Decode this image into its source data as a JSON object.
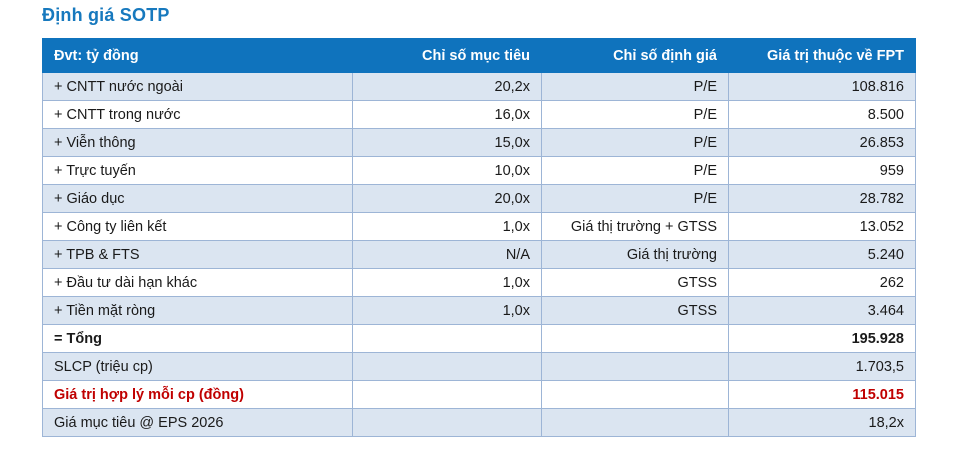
{
  "page_title": "Định giá SOTP",
  "colors": {
    "title_blue": "#1779BE",
    "header_bg": "#0F73BD",
    "header_text": "#FFFFFF",
    "row_shaded_bg": "#DBE5F1",
    "row_plain_bg": "#FFFFFF",
    "cell_border": "#9DB5D6",
    "body_text": "#1A1A1A",
    "highlight_red": "#C00000"
  },
  "table": {
    "headers": [
      "Đvt: tỷ đồng",
      "Chỉ số mục tiêu",
      "Chỉ số định giá",
      "Giá trị thuộc về FPT"
    ],
    "rows": [
      {
        "label": "+ CNTT nước ngoài",
        "target": "20,2x",
        "method": "P/E",
        "value": "108.816",
        "shaded": true,
        "bold": false,
        "red": false
      },
      {
        "label": "+ CNTT trong nước",
        "target": "16,0x",
        "method": "P/E",
        "value": "8.500",
        "shaded": false,
        "bold": false,
        "red": false
      },
      {
        "label": "+ Viễn thông",
        "target": "15,0x",
        "method": "P/E",
        "value": "26.853",
        "shaded": true,
        "bold": false,
        "red": false
      },
      {
        "label": "+ Trực tuyến",
        "target": "10,0x",
        "method": "P/E",
        "value": "959",
        "shaded": false,
        "bold": false,
        "red": false
      },
      {
        "label": "+ Giáo dục",
        "target": "20,0x",
        "method": "P/E",
        "value": "28.782",
        "shaded": true,
        "bold": false,
        "red": false
      },
      {
        "label": "+ Công ty liên kết",
        "target": "1,0x",
        "method": "Giá thị trường + GTSS",
        "value": "13.052",
        "shaded": false,
        "bold": false,
        "red": false
      },
      {
        "label": "+ TPB & FTS",
        "target": "N/A",
        "method": "Giá thị trường",
        "value": "5.240",
        "shaded": true,
        "bold": false,
        "red": false
      },
      {
        "label": "+ Đầu tư dài hạn khác",
        "target": "1,0x",
        "method": "GTSS",
        "value": "262",
        "shaded": false,
        "bold": false,
        "red": false
      },
      {
        "label": "+ Tiền mặt ròng",
        "target": "1,0x",
        "method": "GTSS",
        "value": "3.464",
        "shaded": true,
        "bold": false,
        "red": false
      },
      {
        "label": "= Tổng",
        "target": "",
        "method": "",
        "value": "195.928",
        "shaded": false,
        "bold": true,
        "red": false
      },
      {
        "label": "SLCP (triệu cp)",
        "target": "",
        "method": "",
        "value": "1.703,5",
        "shaded": true,
        "bold": false,
        "red": false
      },
      {
        "label": "Giá trị hợp lý mỗi cp (đồng)",
        "target": "",
        "method": "",
        "value": "115.015",
        "shaded": false,
        "bold": true,
        "red": true
      },
      {
        "label": "Giá mục tiêu @ EPS 2026",
        "target": "",
        "method": "",
        "value": "18,2x",
        "shaded": true,
        "bold": false,
        "red": false
      }
    ]
  }
}
